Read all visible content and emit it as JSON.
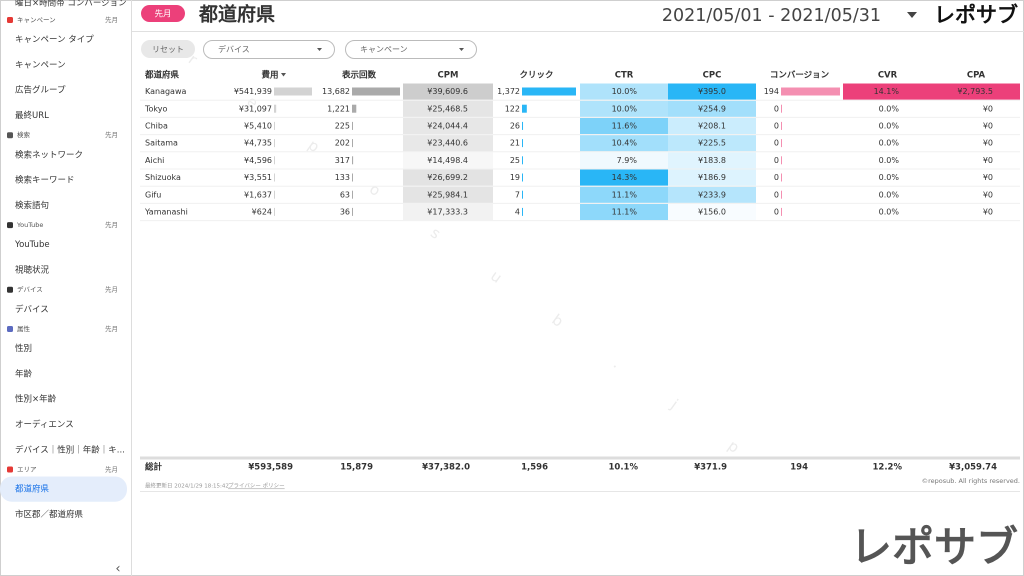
{
  "sidebar": {
    "top_item": "曜日×時間帯 コンバージョン",
    "sections": [
      {
        "label": "キャンペーン",
        "period": "先月",
        "icon_color": "#e53935",
        "items": [
          {
            "label": "キャンペーン タイプ"
          },
          {
            "label": "キャンペーン"
          },
          {
            "label": "広告グループ"
          },
          {
            "label": "最終URL"
          }
        ]
      },
      {
        "label": "検索",
        "period": "先月",
        "icon_color": "#555555",
        "items": [
          {
            "label": "検索ネットワーク"
          },
          {
            "label": "検索キーワード"
          },
          {
            "label": "検索語句"
          }
        ]
      },
      {
        "label": "YouTube",
        "period": "先月",
        "icon_color": "#333333",
        "items": [
          {
            "label": "YouTube"
          },
          {
            "label": "視聴状況"
          }
        ]
      },
      {
        "label": "デバイス",
        "period": "先月",
        "icon_color": "#333333",
        "items": [
          {
            "label": "デバイス"
          }
        ]
      },
      {
        "label": "属性",
        "period": "先月",
        "icon_color": "#5c6bc0",
        "items": [
          {
            "label": "性別"
          },
          {
            "label": "年齢"
          },
          {
            "label": "性別×年齢"
          },
          {
            "label": "オーディエンス"
          },
          {
            "label": "デバイス｜性別｜年齢｜キ..."
          }
        ]
      },
      {
        "label": "エリア",
        "period": "先月",
        "icon_color": "#e53935",
        "items": [
          {
            "label": "都道府県",
            "selected": true
          },
          {
            "label": "市区郡／都道府県"
          }
        ]
      }
    ],
    "collapse": "‹"
  },
  "header": {
    "badge": "先月",
    "title": "都道府県",
    "date_range": "2021/05/01 - 2021/05/31",
    "logo": "レポサブ"
  },
  "filters": {
    "reset": "リセット",
    "dropdowns": [
      "デバイス",
      "キャンペーン"
    ]
  },
  "table": {
    "columns": [
      "都道府県",
      "費用",
      "表示回数",
      "CPM",
      "クリック",
      "CTR",
      "CPC",
      "コンバージョン",
      "CVR",
      "CPA"
    ],
    "rows": [
      [
        "Kanagawa",
        "¥541,939",
        "13,682",
        "¥39,609.6",
        "1,372",
        "10.0%",
        "¥395.0",
        "194",
        "14.1%",
        "¥2,793.5"
      ],
      [
        "Tokyo",
        "¥31,097",
        "1,221",
        "¥25,468.5",
        "122",
        "10.0%",
        "¥254.9",
        "0",
        "0.0%",
        "¥0"
      ],
      [
        "Chiba",
        "¥5,410",
        "225",
        "¥24,044.4",
        "26",
        "11.6%",
        "¥208.1",
        "0",
        "0.0%",
        "¥0"
      ],
      [
        "Saitama",
        "¥4,735",
        "202",
        "¥23,440.6",
        "21",
        "10.4%",
        "¥225.5",
        "0",
        "0.0%",
        "¥0"
      ],
      [
        "Aichi",
        "¥4,596",
        "317",
        "¥14,498.4",
        "25",
        "7.9%",
        "¥183.8",
        "0",
        "0.0%",
        "¥0"
      ],
      [
        "Shizuoka",
        "¥3,551",
        "133",
        "¥26,699.2",
        "19",
        "14.3%",
        "¥186.9",
        "0",
        "0.0%",
        "¥0"
      ],
      [
        "Gifu",
        "¥1,637",
        "63",
        "¥25,984.1",
        "7",
        "11.1%",
        "¥233.9",
        "0",
        "0.0%",
        "¥0"
      ],
      [
        "Yamanashi",
        "¥624",
        "36",
        "¥17,333.3",
        "4",
        "11.1%",
        "¥156.0",
        "0",
        "0.0%",
        "¥0"
      ]
    ],
    "totals": [
      "総計",
      "¥593,589",
      "15,879",
      "¥37,382.0",
      "1,596",
      "10.1%",
      "¥371.9",
      "194",
      "12.2%",
      "¥3,059.74"
    ]
  },
  "footer": {
    "updated": "最終更新日 2024/1/29 18:15:42",
    "privacy": "プライバシー ポリシー",
    "copyright": "©reposub. All rights reserved."
  },
  "watermark": "reposub.jp",
  "brand": "レポサブ"
}
